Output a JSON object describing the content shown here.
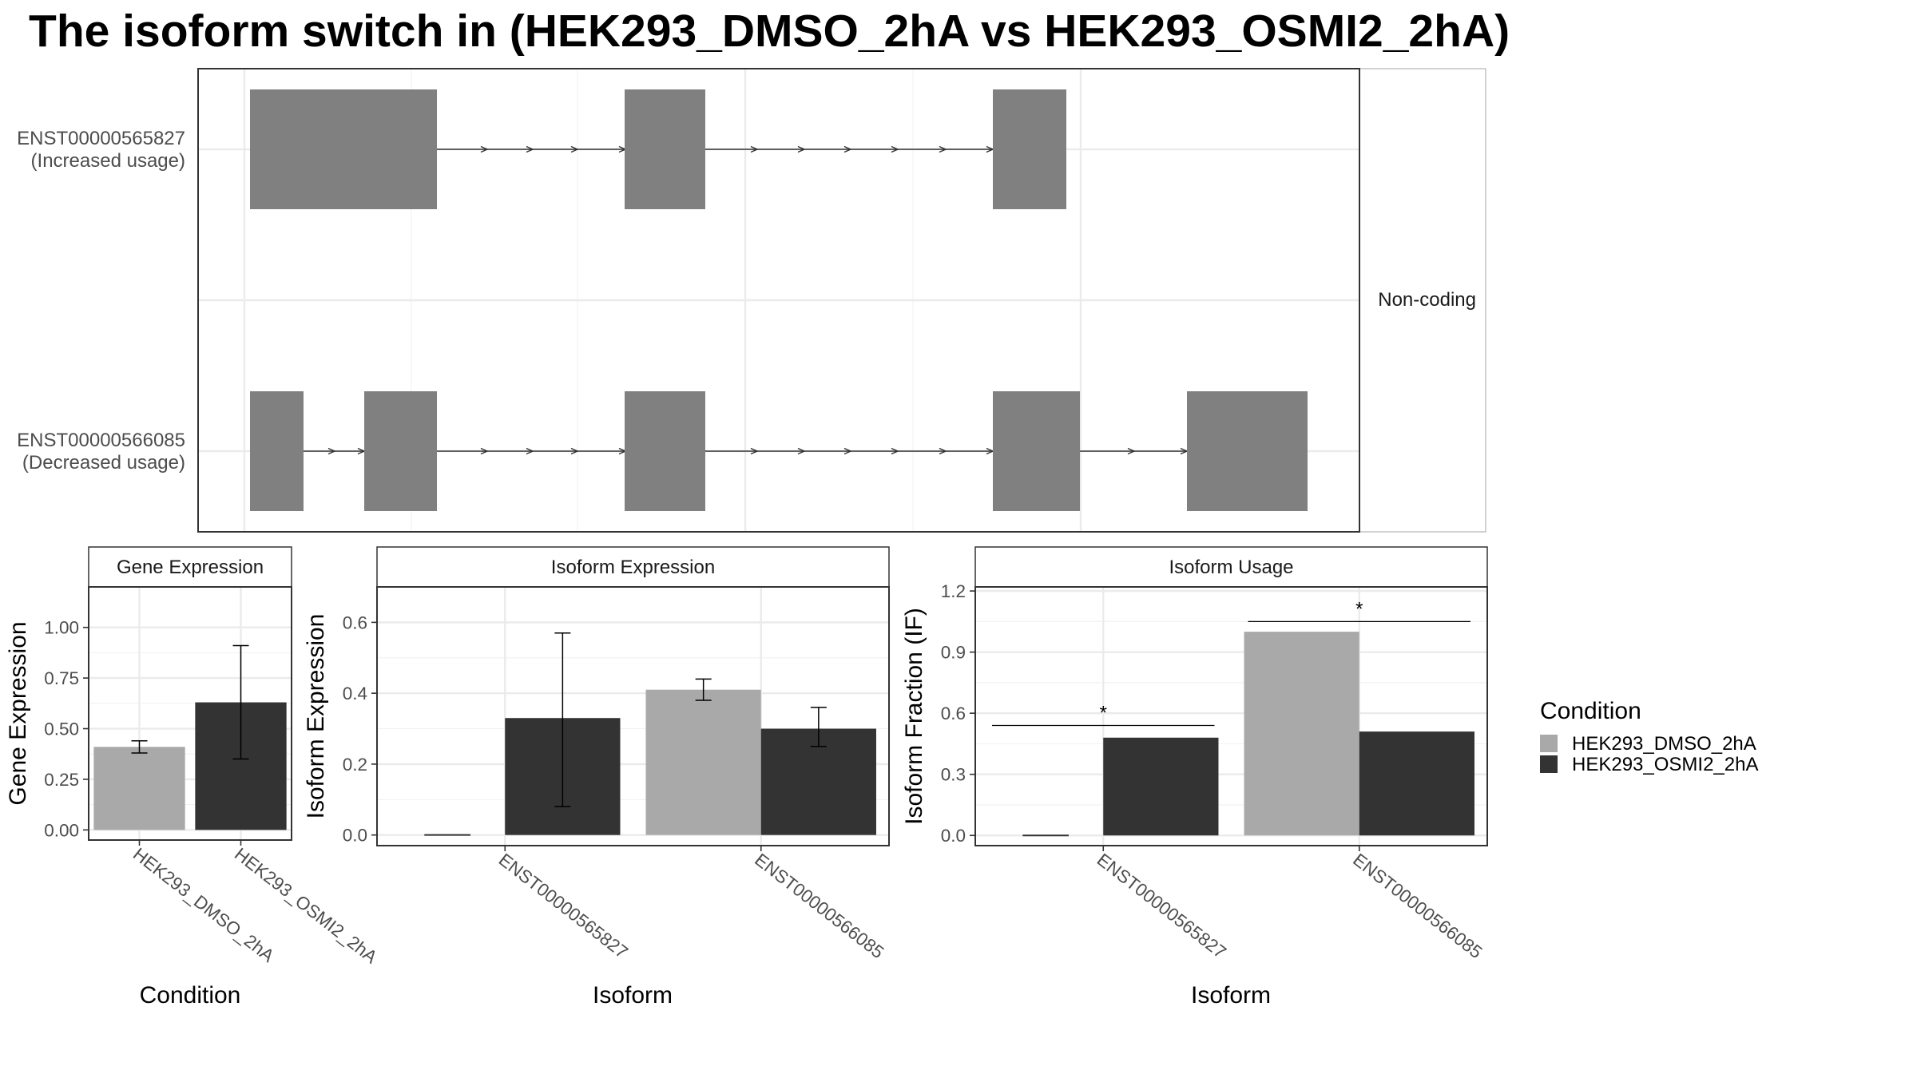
{
  "title": "The isoform switch in  (HEK293_DMSO_2hA vs HEK293_OSMI2_2hA)",
  "colors": {
    "HEK293_DMSO_2hA": "#a9a9a9",
    "HEK293_OSMI2_2hA": "#333333",
    "exon": "#808080"
  },
  "structure": {
    "facet_label": "Non-coding",
    "transcripts": [
      {
        "id": "ENST00000565827",
        "note": "(Increased usage)"
      },
      {
        "id": "ENST00000566085",
        "note": "(Decreased usage)"
      }
    ]
  },
  "legend": {
    "title": "Condition",
    "entries": [
      "HEK293_DMSO_2hA",
      "HEK293_OSMI2_2hA"
    ]
  },
  "chart_data": [
    {
      "type": "bar",
      "title": "Gene Expression",
      "xlabel": "Condition",
      "ylabel": "Gene Expression",
      "ylim": [
        -0.05,
        1.2
      ],
      "yticks": [
        0,
        0.25,
        0.5,
        0.75,
        1
      ],
      "ytick_labels": [
        "0.00",
        "0.25",
        "0.50",
        "0.75",
        "1.00"
      ],
      "categories": [
        "HEK293_DMSO_2hA",
        "HEK293_OSMI2_2hA"
      ],
      "values": [
        0.41,
        0.63
      ],
      "error_low": [
        0.38,
        0.35
      ],
      "error_high": [
        0.44,
        0.91
      ]
    },
    {
      "type": "bar",
      "title": "Isoform Expression",
      "xlabel": "Isoform",
      "ylabel": "Isoform Expression",
      "ylim": [
        -0.03,
        0.7
      ],
      "yticks": [
        0,
        0.2,
        0.4,
        0.6
      ],
      "ytick_labels": [
        "0.0",
        "0.2",
        "0.4",
        "0.6"
      ],
      "categories": [
        "ENST00000565827",
        "ENST00000566085"
      ],
      "series": [
        {
          "name": "HEK293_DMSO_2hA",
          "values": [
            0.0,
            0.41
          ],
          "error_low": [
            0.0,
            0.38
          ],
          "error_high": [
            0.0,
            0.44
          ]
        },
        {
          "name": "HEK293_OSMI2_2hA",
          "values": [
            0.33,
            0.3
          ],
          "error_low": [
            0.08,
            0.25
          ],
          "error_high": [
            0.57,
            0.36
          ]
        }
      ]
    },
    {
      "type": "bar",
      "title": "Isoform Usage",
      "xlabel": "Isoform",
      "ylabel": "Isoform Fraction (IF)",
      "ylim": [
        -0.05,
        1.22
      ],
      "yticks": [
        0,
        0.3,
        0.6,
        0.9,
        1.2
      ],
      "ytick_labels": [
        "0.0",
        "0.3",
        "0.6",
        "0.9",
        "1.2"
      ],
      "categories": [
        "ENST00000565827",
        "ENST00000566085"
      ],
      "series": [
        {
          "name": "HEK293_DMSO_2hA",
          "values": [
            0.0,
            1.0
          ]
        },
        {
          "name": "HEK293_OSMI2_2hA",
          "values": [
            0.48,
            0.51
          ]
        }
      ],
      "significance": [
        {
          "label": "*",
          "y": 0.54
        },
        {
          "label": "*",
          "y": 1.05
        }
      ]
    }
  ]
}
